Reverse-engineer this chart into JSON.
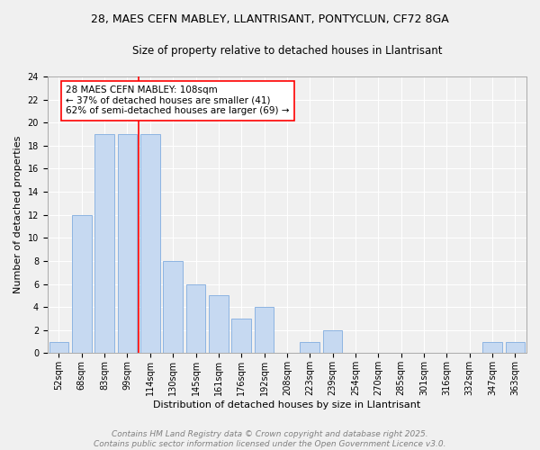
{
  "title_line1": "28, MAES CEFN MABLEY, LLANTRISANT, PONTYCLUN, CF72 8GA",
  "title_line2": "Size of property relative to detached houses in Llantrisant",
  "xlabel": "Distribution of detached houses by size in Llantrisant",
  "ylabel": "Number of detached properties",
  "categories": [
    "52sqm",
    "68sqm",
    "83sqm",
    "99sqm",
    "114sqm",
    "130sqm",
    "145sqm",
    "161sqm",
    "176sqm",
    "192sqm",
    "208sqm",
    "223sqm",
    "239sqm",
    "254sqm",
    "270sqm",
    "285sqm",
    "301sqm",
    "316sqm",
    "332sqm",
    "347sqm",
    "363sqm"
  ],
  "values": [
    1,
    12,
    19,
    19,
    19,
    8,
    6,
    5,
    3,
    4,
    0,
    1,
    2,
    0,
    0,
    0,
    0,
    0,
    0,
    1,
    1
  ],
  "bar_color": "#c6d9f1",
  "bar_edge_color": "#8db4e2",
  "reference_line_color": "red",
  "annotation_text": "28 MAES CEFN MABLEY: 108sqm\n← 37% of detached houses are smaller (41)\n62% of semi-detached houses are larger (69) →",
  "annotation_box_color": "white",
  "annotation_box_edge_color": "red",
  "ylim": [
    0,
    24
  ],
  "yticks": [
    0,
    2,
    4,
    6,
    8,
    10,
    12,
    14,
    16,
    18,
    20,
    22,
    24
  ],
  "footer_line1": "Contains HM Land Registry data © Crown copyright and database right 2025.",
  "footer_line2": "Contains public sector information licensed under the Open Government Licence v3.0.",
  "background_color": "#f0f0f0",
  "plot_bg_color": "#f0f0f0",
  "grid_color": "white",
  "title_fontsize": 9,
  "subtitle_fontsize": 8.5,
  "axis_label_fontsize": 8,
  "tick_fontsize": 7,
  "annotation_fontsize": 7.5,
  "footer_fontsize": 6.5
}
